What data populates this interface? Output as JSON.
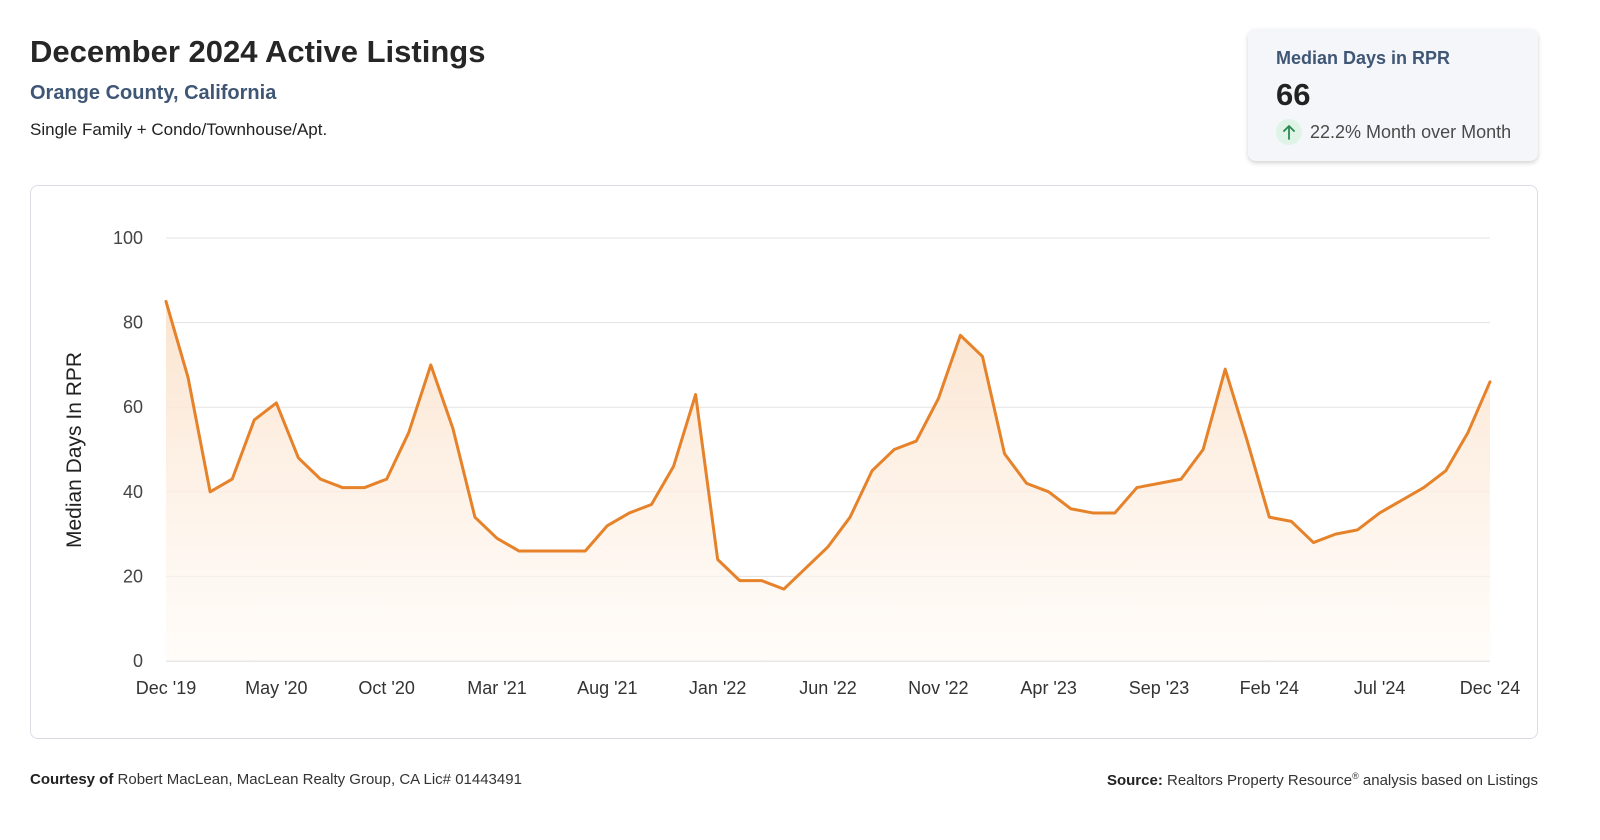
{
  "header": {
    "title": "December 2024 Active Listings",
    "location": "Orange County, California",
    "property_type": "Single Family + Condo/Townhouse/Apt."
  },
  "metric": {
    "label": "Median Days in RPR",
    "value": "66",
    "change": "22.2% Month over Month",
    "direction_icon": "arrow-up-icon",
    "positive_color": "#2a8a4f"
  },
  "footer": {
    "courtesy_label": "Courtesy of",
    "courtesy_text": "Robert MacLean, MacLean Realty Group, CA Lic# 01443491",
    "source_label": "Source:",
    "source_text_a": "Realtors Property Resource",
    "source_reg": "®",
    "source_text_b": "analysis based on Listings"
  },
  "colors": {
    "line": "#e6822a",
    "fill_top": "#fbe2cc",
    "fill_bottom": "#fffaf5",
    "grid": "#e3e3e3"
  },
  "chart_data": {
    "type": "area",
    "ylabel": "Median Days In RPR",
    "ylim": [
      0,
      100
    ],
    "yticks": [
      0,
      20,
      40,
      60,
      80,
      100
    ],
    "grid": true,
    "xtick_labels": [
      "Dec '19",
      "May '20",
      "Oct '20",
      "Mar '21",
      "Aug '21",
      "Jan '22",
      "Jun '22",
      "Nov '22",
      "Apr '23",
      "Sep '23",
      "Feb '24",
      "Jul '24",
      "Dec '24"
    ],
    "xtick_every": 5,
    "series": [
      {
        "values": [
          85,
          67,
          40,
          43,
          57,
          61,
          48,
          43,
          41,
          41,
          43,
          54,
          70,
          55,
          34,
          29,
          26,
          26,
          26,
          26,
          32,
          35,
          37,
          46,
          63,
          24,
          19,
          19,
          17,
          22,
          27,
          34,
          45,
          50,
          52,
          62,
          77,
          72,
          49,
          42,
          40,
          36,
          35,
          35,
          41,
          42,
          43,
          50,
          69,
          52,
          34,
          33,
          28,
          30,
          31,
          35,
          38,
          41,
          45,
          54,
          66
        ]
      }
    ]
  }
}
